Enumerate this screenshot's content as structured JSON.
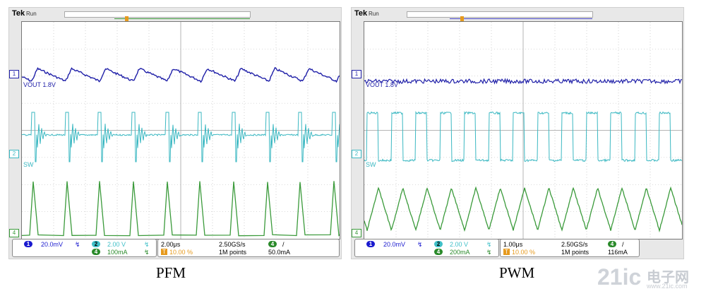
{
  "colors": {
    "ch1": "#1f1fa8",
    "ch2": "#3bb8c2",
    "ch4": "#3a9a3a",
    "grid": "#b5b5b5",
    "trigger": "#e69a1e"
  },
  "icons": [
    "trigger-marker-icon",
    "ch1-marker-icon",
    "ch2-marker-icon",
    "ch4-marker-icon",
    "slope-rise-icon",
    "bandwidth-limit-icon"
  ],
  "scopes": [
    {
      "brand": "Tek",
      "run": "Run",
      "ch1_label": "VOUT 1.8V",
      "ch2_label": "SW",
      "ch1_num": "1",
      "ch2_num": "2",
      "ch4_num": "4",
      "ch1_scale": "20.0mV",
      "ch2_scale": "2.00 V",
      "ch4_scale": "100mA",
      "timebase": "2.00μs",
      "trig_pos": "10.00 %",
      "sample_rate": "2.50GS/s",
      "record": "1M points",
      "trig_ch": "4",
      "trig_slope": "/",
      "trig_level": "50.0mA",
      "caption": "PFM"
    },
    {
      "brand": "Tek",
      "run": "Run",
      "ch1_label": "VOUT 1.8V",
      "ch2_label": "SW",
      "ch1_num": "1",
      "ch2_num": "2",
      "ch4_num": "4",
      "ch1_scale": "20.0mV",
      "ch2_scale": "2.00 V",
      "ch4_scale": "200mA",
      "timebase": "1.00μs",
      "trig_pos": "10.00 %",
      "sample_rate": "2.50GS/s",
      "record": "1M points",
      "trig_ch": "4",
      "trig_slope": "/",
      "trig_level": "116mA",
      "caption": "PWM"
    }
  ],
  "watermark": {
    "main": "21ic",
    "cn": "电子网",
    "url": "www.21ic.com"
  }
}
